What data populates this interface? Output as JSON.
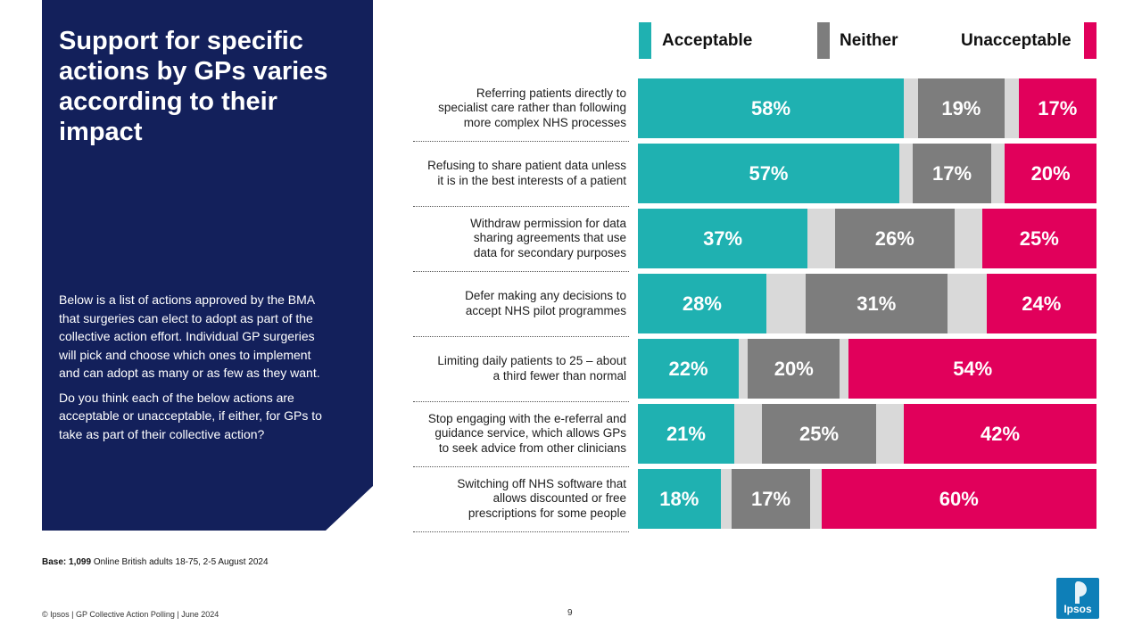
{
  "panel": {
    "title": "Support for specific actions by GPs varies according to their impact",
    "paragraph1": "Below is a list of actions approved by the BMA that surgeries can elect to adopt as part of the collective action effort. Individual GP surgeries will pick and choose which ones to implement and can adopt as many or as few as they want.",
    "paragraph2": "Do you think each of the below actions are acceptable or unacceptable, if either, for GPs to take as part of their collective action?"
  },
  "legend": {
    "acceptable": "Acceptable",
    "neither": "Neither",
    "unacceptable": "Unacceptable"
  },
  "colors": {
    "acceptable": "#1fb1b1",
    "neither": "#7d7d7d",
    "unacceptable": "#e1005b",
    "gap": "#d9d9d9",
    "panel": "#13205b",
    "logo": "#0e7fb8"
  },
  "chart_data": {
    "type": "bar",
    "orientation": "horizontal",
    "stacked": true,
    "xlim": [
      0,
      100
    ],
    "categories": [
      "Referring patients directly to specialist care rather than following more complex NHS processes",
      "Refusing to share patient data unless it is in the best interests of a patient",
      "Withdraw permission for data sharing agreements that use data for secondary purposes",
      "Defer making any decisions to accept NHS pilot programmes",
      "Limiting daily patients to 25 – about a third fewer than normal",
      "Stop engaging with the e-referral and guidance service, which allows GPs to seek advice from other clinicians",
      "Switching off NHS software that allows discounted or free prescriptions for some people"
    ],
    "category_lines": [
      [
        "Referring patients directly to",
        "specialist care rather than following",
        "more complex NHS processes"
      ],
      [
        "Refusing to share patient data unless",
        "it is in the best interests of a patient"
      ],
      [
        "Withdraw permission for data",
        "sharing agreements that use",
        "data for secondary purposes"
      ],
      [
        "Defer making any decisions to",
        "accept NHS pilot programmes"
      ],
      [
        "Limiting daily patients to 25 – about",
        "a third fewer than normal"
      ],
      [
        "Stop engaging with the e-referral and",
        "guidance service, which allows GPs",
        "to seek advice from other clinicians"
      ],
      [
        "Switching off NHS software that",
        "allows discounted or free",
        "prescriptions for some people"
      ]
    ],
    "series": [
      {
        "name": "Acceptable",
        "values": [
          58,
          57,
          37,
          28,
          22,
          21,
          18
        ],
        "labels": [
          "58%",
          "57%",
          "37%",
          "28%",
          "22%",
          "21%",
          "18%"
        ]
      },
      {
        "name": "Neither",
        "values": [
          19,
          17,
          26,
          31,
          20,
          25,
          17
        ],
        "labels": [
          "19%",
          "17%",
          "26%",
          "31%",
          "20%",
          "25%",
          "17%"
        ]
      },
      {
        "name": "Unacceptable",
        "values": [
          17,
          20,
          25,
          24,
          54,
          42,
          60
        ],
        "labels": [
          "17%",
          "20%",
          "25%",
          "24%",
          "54%",
          "42%",
          "60%"
        ]
      }
    ],
    "legend_position": "top"
  },
  "base_note": {
    "label": "Base:",
    "value": "1,099",
    "text": "Online British adults 18-75, 2-5 August 2024"
  },
  "footer": {
    "left": "© Ipsos | GP Collective Action Polling | June 2024",
    "page": "9"
  },
  "logo": {
    "text": "Ipsos"
  }
}
